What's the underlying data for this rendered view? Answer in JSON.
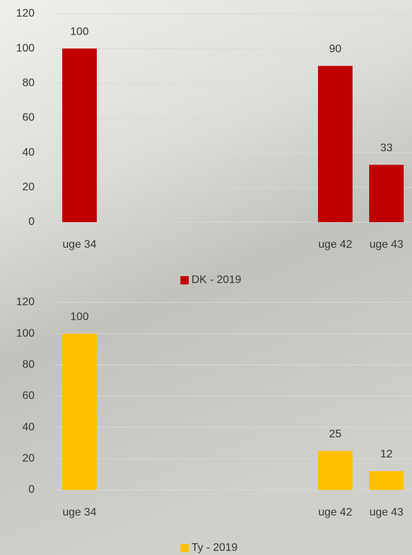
{
  "chart_data": [
    {
      "type": "bar",
      "categories": [
        "uge 34",
        null,
        null,
        null,
        null,
        "uge 42",
        "uge 43"
      ],
      "series": [
        {
          "name": "DK - 2019",
          "color": "#c00000",
          "values": [
            100,
            null,
            null,
            null,
            null,
            90,
            33
          ]
        }
      ],
      "ylim": [
        0,
        120
      ],
      "yticks": [
        0,
        20,
        40,
        60,
        80,
        100,
        120
      ],
      "grid": true
    },
    {
      "type": "bar",
      "categories": [
        "uge 34",
        null,
        null,
        null,
        null,
        "uge 42",
        "uge 43"
      ],
      "series": [
        {
          "name": "Ty - 2019",
          "color": "#ffc000",
          "values": [
            100,
            null,
            null,
            null,
            null,
            25,
            12
          ]
        }
      ],
      "ylim": [
        0,
        120
      ],
      "yticks": [
        0,
        20,
        40,
        60,
        80,
        100,
        120
      ],
      "grid": true
    }
  ]
}
